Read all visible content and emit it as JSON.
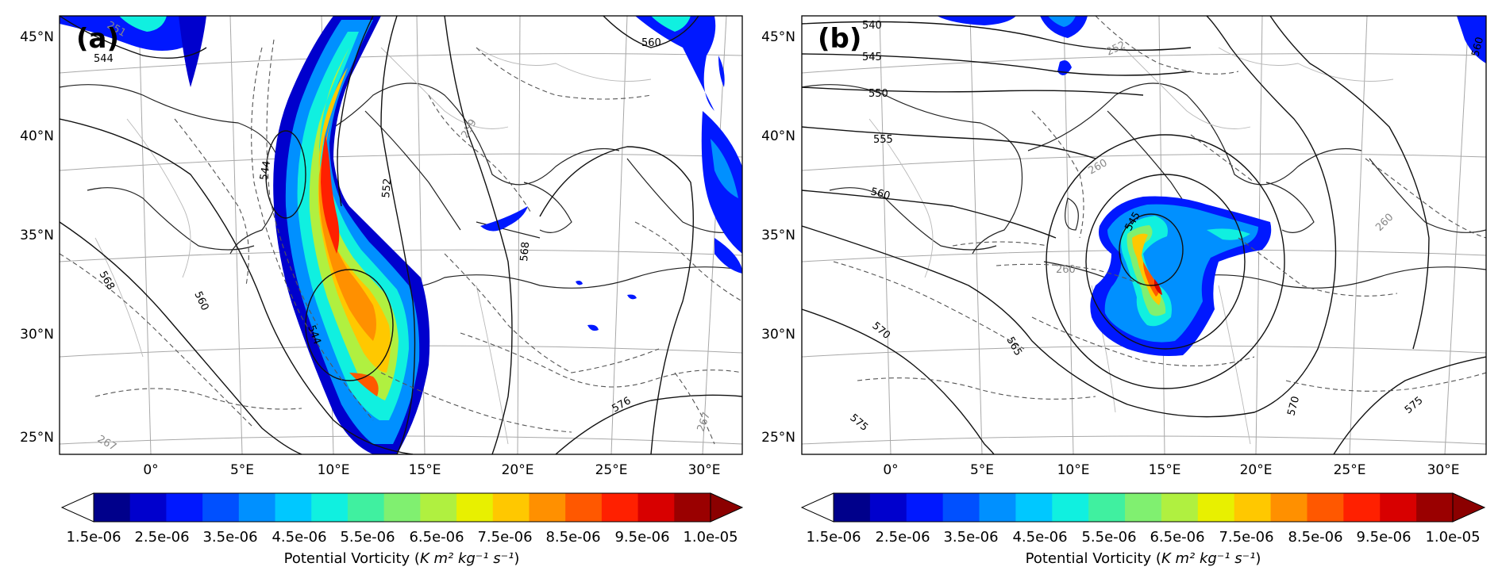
{
  "panels": [
    {
      "id": "a",
      "label": "(a)",
      "lat_ticks": [
        "45°N",
        "40°N",
        "35°N",
        "30°N",
        "25°N"
      ],
      "lon_ticks": [
        "0°",
        "5°E",
        "10°E",
        "15°E",
        "20°E",
        "25°E",
        "30°E"
      ],
      "contour_labels_black": [
        "544",
        "544",
        "544",
        "552",
        "560",
        "560",
        "568",
        "568",
        "576"
      ],
      "contour_labels_grey": [
        "251",
        "259",
        "267",
        "267"
      ],
      "colorbar": {
        "tick_labels": [
          "1.5e-06",
          "2.5e-06",
          "3.5e-06",
          "4.5e-06",
          "5.5e-06",
          "6.5e-06",
          "7.5e-06",
          "8.5e-06",
          "9.5e-06",
          "1.0e-05"
        ],
        "label_prefix": "Potential Vorticity (",
        "label_units": "K m² kg⁻¹ s⁻¹",
        "label_suffix": ")"
      }
    },
    {
      "id": "b",
      "label": "(b)",
      "lat_ticks": [
        "45°N",
        "40°N",
        "35°N",
        "30°N",
        "25°N"
      ],
      "lon_ticks": [
        "0°",
        "5°E",
        "10°E",
        "15°E",
        "20°E",
        "25°E",
        "30°E"
      ],
      "contour_labels_black": [
        "540",
        "545",
        "550",
        "555",
        "560",
        "545",
        "565",
        "570",
        "570",
        "575",
        "575",
        "560"
      ],
      "contour_labels_grey": [
        "252",
        "260",
        "260",
        "260"
      ],
      "colorbar": {
        "tick_labels": [
          "1.5e-06",
          "2.5e-06",
          "3.5e-06",
          "4.5e-06",
          "5.5e-06",
          "6.5e-06",
          "7.5e-06",
          "8.5e-06",
          "9.5e-06",
          "1.0e-05"
        ],
        "label_prefix": "Potential Vorticity (",
        "label_units": "K m² kg⁻¹ s⁻¹",
        "label_suffix": ")"
      }
    }
  ],
  "colormap": [
    "#00008b",
    "#0000cd",
    "#0018ff",
    "#0050ff",
    "#0090ff",
    "#00c8ff",
    "#10f0e0",
    "#40f0a0",
    "#80f070",
    "#b0f040",
    "#e8f000",
    "#ffc800",
    "#ff9000",
    "#ff5800",
    "#ff2000",
    "#d80000",
    "#9a0000"
  ],
  "colorbar_under_color": "#ffffff",
  "colorbar_over_color": "#8b0000"
}
